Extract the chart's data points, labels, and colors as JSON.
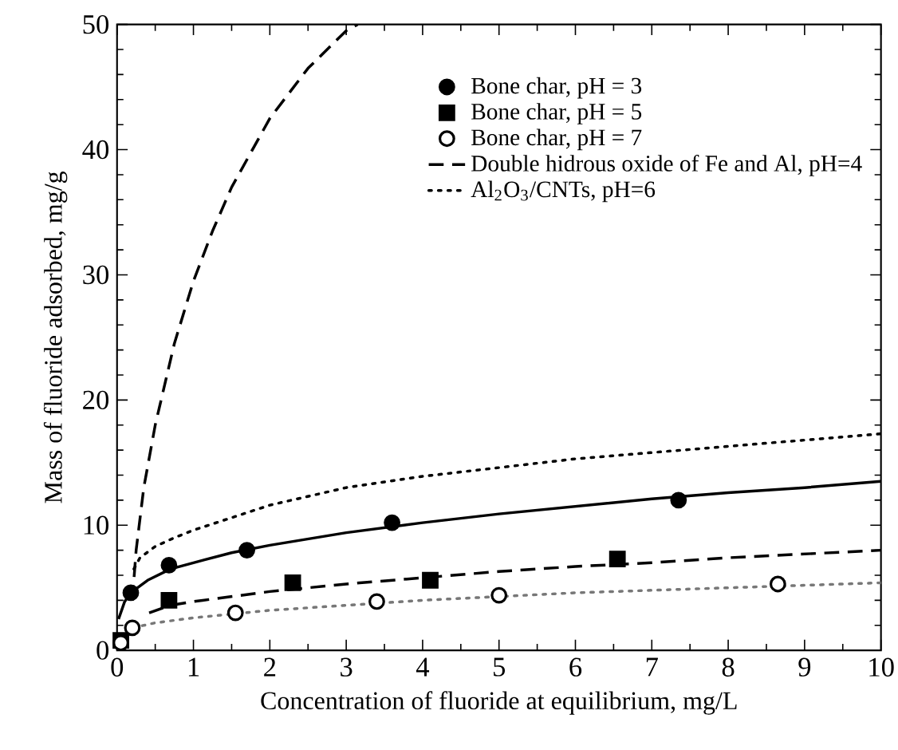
{
  "chart_data": {
    "type": "scatter",
    "xlabel": "Concentration of fluoride at equilibrium, mg/L",
    "ylabel": "Mass of fluoride adsorbed, mg/g",
    "xlim": [
      0,
      10
    ],
    "ylim": [
      0,
      50
    ],
    "xticks": [
      0,
      1,
      2,
      3,
      4,
      5,
      6,
      7,
      8,
      9,
      10
    ],
    "yticks": [
      0,
      10,
      20,
      30,
      40,
      50
    ],
    "legend": "top right",
    "grid": false,
    "series": [
      {
        "name": "Bone char, pH = 3",
        "marker": "circle",
        "color": "#000000",
        "x": [
          0.18,
          0.68,
          1.7,
          3.6,
          7.35
        ],
        "values": [
          4.6,
          6.8,
          8.0,
          10.2,
          12.0
        ]
      },
      {
        "name": "Bone char, pH = 5",
        "marker": "square",
        "color": "#000000",
        "x": [
          0.05,
          0.68,
          2.3,
          4.1,
          6.55
        ],
        "values": [
          0.8,
          4.0,
          5.4,
          5.6,
          7.3
        ]
      },
      {
        "name": "Bone char, pH = 7",
        "marker": "circle",
        "color": "#ffffff",
        "x": [
          0.05,
          0.2,
          1.55,
          3.4,
          5.0,
          8.65
        ],
        "values": [
          0.6,
          1.8,
          3.0,
          3.9,
          4.4,
          5.3
        ]
      },
      {
        "type": "line",
        "line_style": "solid",
        "color": "#000000",
        "x": [
          0.02,
          0.1,
          0.18,
          0.4,
          0.7,
          1,
          1.5,
          2,
          3,
          4,
          5,
          6,
          7,
          8,
          9,
          10
        ],
        "values": [
          2.5,
          3.9,
          4.6,
          5.6,
          6.5,
          7.0,
          7.8,
          8.4,
          9.4,
          10.2,
          10.9,
          11.5,
          12.1,
          12.6,
          13.0,
          13.5
        ]
      },
      {
        "type": "line",
        "line_style": "dashed",
        "color": "#000000",
        "x": [
          0.42,
          0.7,
          1,
          2,
          3,
          4,
          5,
          6,
          7,
          8,
          9,
          10
        ],
        "values": [
          3.0,
          3.6,
          3.9,
          4.7,
          5.3,
          5.8,
          6.3,
          6.7,
          7.0,
          7.4,
          7.7,
          8.0
        ]
      },
      {
        "type": "line",
        "line_style": "dotted",
        "color": "#777777",
        "x": [
          0.02,
          0.2,
          0.5,
          1,
          1.5,
          2,
          3,
          4,
          5,
          6,
          7,
          8,
          9,
          10
        ],
        "values": [
          0.8,
          1.8,
          2.2,
          2.6,
          2.9,
          3.2,
          3.6,
          4.0,
          4.3,
          4.6,
          4.8,
          5.0,
          5.2,
          5.4
        ]
      },
      {
        "name": "Double hidrous oxide of Fe and Al, pH=4",
        "type": "line",
        "line_style": "dashed",
        "color": "#000000",
        "x": [
          0.2,
          0.25,
          0.35,
          0.5,
          0.75,
          1,
          1.25,
          1.5,
          2,
          2.5,
          3,
          3.15
        ],
        "values": [
          4,
          8,
          13,
          18,
          24.5,
          29.5,
          33.5,
          37,
          42.5,
          46.5,
          49.5,
          50
        ]
      },
      {
        "name": "Al$_{2}$O$_{3}$/CNTs, pH=6",
        "type": "line",
        "line_style": "dotted",
        "color": "#000000",
        "x": [
          0.22,
          0.3,
          0.5,
          0.75,
          1,
          1.5,
          2,
          3,
          4,
          5,
          6,
          7,
          8,
          9,
          10
        ],
        "values": [
          6.5,
          7.4,
          8.3,
          9.0,
          9.6,
          10.6,
          11.6,
          13.0,
          13.9,
          14.6,
          15.3,
          15.8,
          16.3,
          16.8,
          17.3
        ]
      }
    ]
  }
}
